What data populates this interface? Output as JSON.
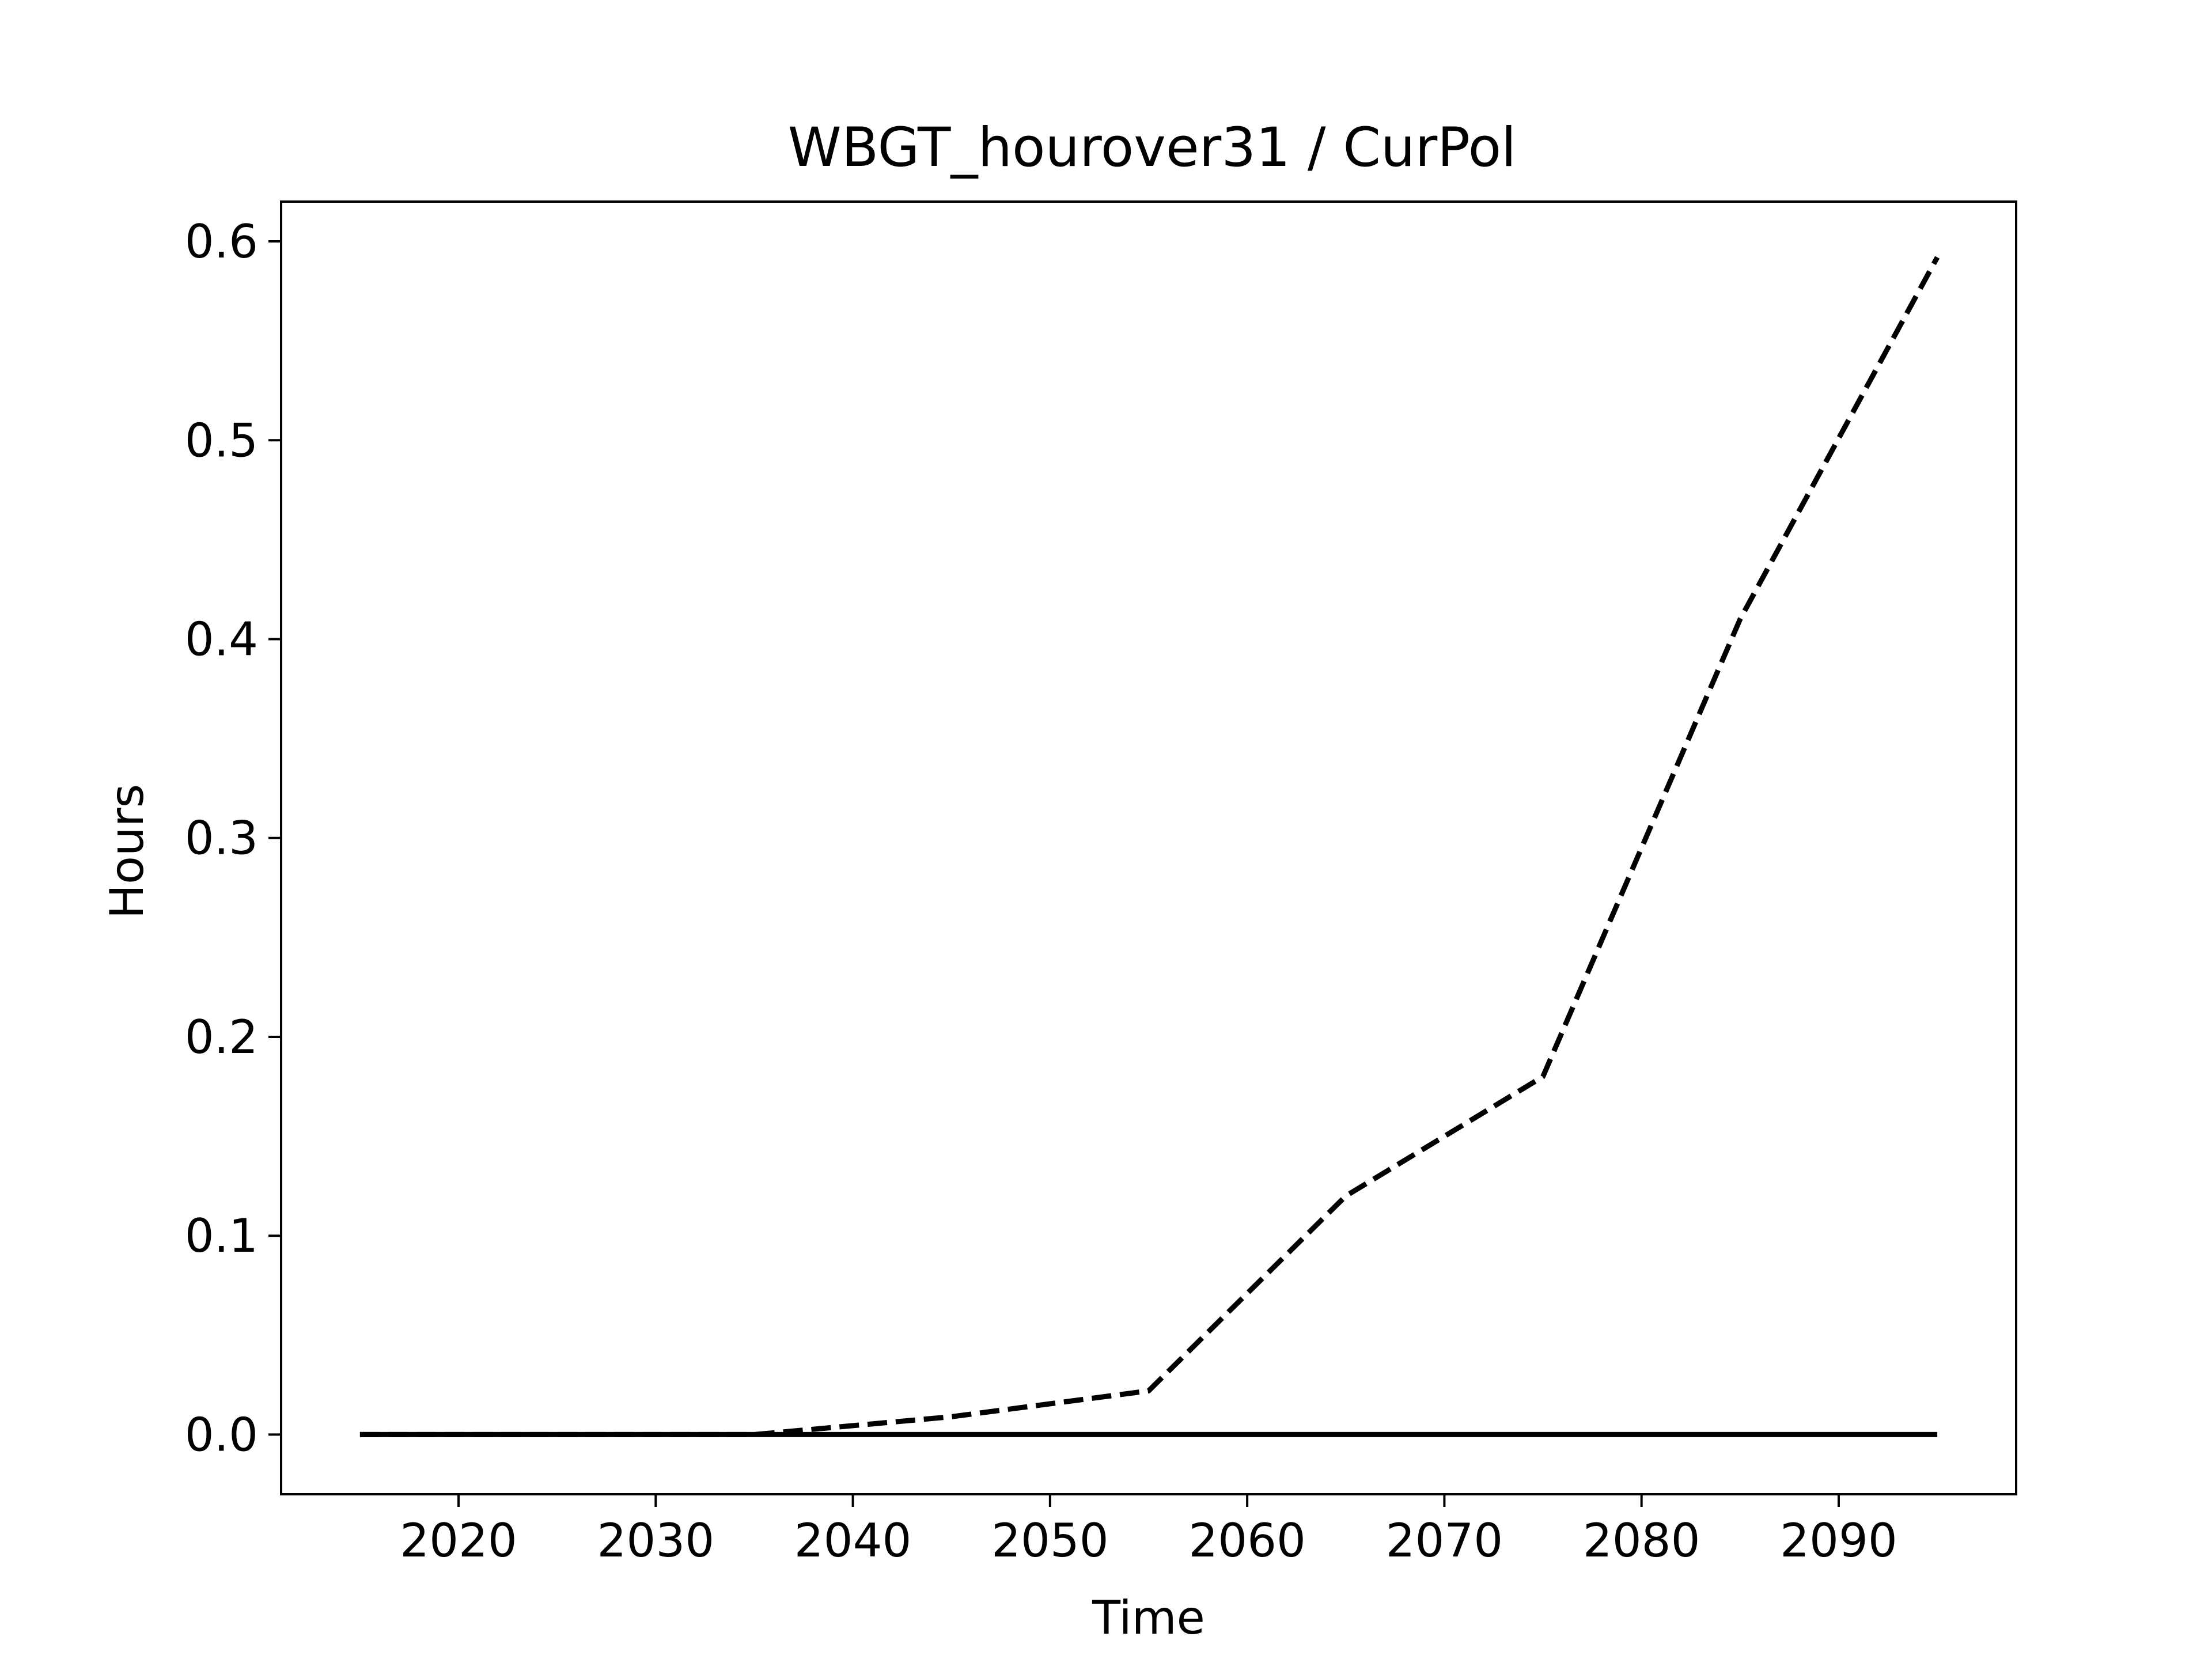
{
  "chart_data": {
    "type": "line",
    "title": "WBGT_hourover31 / CurPol",
    "xlabel": "Time",
    "ylabel": "Hours",
    "xlim": [
      2011,
      2099
    ],
    "ylim": [
      -0.03,
      0.62
    ],
    "xticks": [
      2020,
      2030,
      2040,
      2050,
      2060,
      2070,
      2080,
      2090
    ],
    "yticks": [
      0.0,
      0.1,
      0.2,
      0.3,
      0.4,
      0.5,
      0.6
    ],
    "ytick_labels": [
      "0.0",
      "0.1",
      "0.2",
      "0.3",
      "0.4",
      "0.5",
      "0.6"
    ],
    "grid": false,
    "legend": "none",
    "x": [
      2015,
      2025,
      2035,
      2045,
      2055,
      2065,
      2075,
      2085,
      2095
    ],
    "series": [
      {
        "style": "dashed",
        "color": "#000000",
        "values": [
          0.0,
          0.0,
          0.0,
          0.009,
          0.022,
          0.12,
          0.18,
          0.41,
          0.592
        ]
      },
      {
        "style": "solid",
        "color": "#000000",
        "values": [
          0.0,
          0.0,
          0.0,
          0.0,
          0.0,
          0.0,
          0.0,
          0.0,
          0.0
        ]
      }
    ]
  }
}
